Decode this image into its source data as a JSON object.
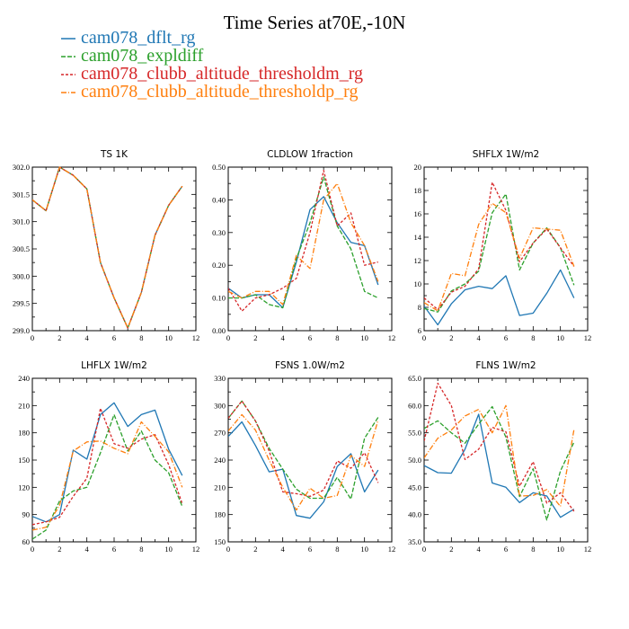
{
  "title": "Time Series at70E,-10N",
  "legend": [
    {
      "label": "cam078_dflt_rg",
      "color": "#1f77b4",
      "dash": ""
    },
    {
      "label": "cam078_expldiff",
      "color": "#2ca02c",
      "dash": "5,2"
    },
    {
      "label": "cam078_clubb_altitude_thresholdm_rg",
      "color": "#d62728",
      "dash": "3,2"
    },
    {
      "label": "cam078_clubb_altitude_thresholdp_rg",
      "color": "#ff7f0e",
      "dash": "6,2,1,2"
    }
  ],
  "chart_data": [
    {
      "type": "line",
      "title": "TS   1K",
      "x": [
        0,
        1,
        2,
        3,
        4,
        5,
        6,
        7,
        8,
        9,
        10,
        11
      ],
      "xlim": [
        0,
        12
      ],
      "xticks": [
        0,
        2,
        4,
        6,
        8,
        10,
        12
      ],
      "ylim": [
        299.0,
        302.0
      ],
      "yticks": [
        "299.0",
        "299.5",
        "300.0",
        "300.5",
        "301.0",
        "301.5",
        "302.0"
      ],
      "series": [
        {
          "name": "cam078_dflt_rg",
          "values": [
            301.4,
            301.2,
            302.0,
            301.85,
            301.6,
            300.25,
            299.6,
            299.05,
            299.7,
            300.75,
            301.3,
            301.65
          ]
        },
        {
          "name": "cam078_expldiff",
          "values": [
            301.4,
            301.2,
            302.0,
            301.85,
            301.6,
            300.25,
            299.6,
            299.05,
            299.7,
            300.75,
            301.3,
            301.65
          ]
        },
        {
          "name": "cam078_clubb_altitude_thresholdm_rg",
          "values": [
            301.4,
            301.2,
            302.0,
            301.85,
            301.6,
            300.25,
            299.6,
            299.05,
            299.7,
            300.75,
            301.3,
            301.65
          ]
        },
        {
          "name": "cam078_clubb_altitude_thresholdp_rg",
          "values": [
            301.4,
            301.2,
            302.0,
            301.85,
            301.6,
            300.25,
            299.6,
            299.05,
            299.7,
            300.75,
            301.3,
            301.65
          ]
        }
      ]
    },
    {
      "type": "line",
      "title": "CLDLOW   1fraction",
      "x": [
        0,
        1,
        2,
        3,
        4,
        5,
        6,
        7,
        8,
        9,
        10,
        11
      ],
      "xlim": [
        0,
        12
      ],
      "xticks": [
        0,
        2,
        4,
        6,
        8,
        10,
        12
      ],
      "ylim": [
        0.0,
        0.5
      ],
      "yticks": [
        "0.00",
        "0.10",
        "0.20",
        "0.30",
        "0.40",
        "0.50"
      ],
      "series": [
        {
          "name": "cam078_dflt_rg",
          "values": [
            0.13,
            0.1,
            0.11,
            0.11,
            0.07,
            0.21,
            0.37,
            0.41,
            0.33,
            0.27,
            0.26,
            0.14
          ]
        },
        {
          "name": "cam078_expldiff",
          "values": [
            0.1,
            0.1,
            0.11,
            0.08,
            0.07,
            0.22,
            0.33,
            0.47,
            0.32,
            0.25,
            0.12,
            0.1
          ]
        },
        {
          "name": "cam078_clubb_altitude_thresholdm_rg",
          "values": [
            0.13,
            0.06,
            0.1,
            0.11,
            0.13,
            0.16,
            0.3,
            0.49,
            0.32,
            0.36,
            0.2,
            0.21
          ]
        },
        {
          "name": "cam078_clubb_altitude_thresholdp_rg",
          "values": [
            0.12,
            0.1,
            0.12,
            0.12,
            0.08,
            0.23,
            0.19,
            0.4,
            0.45,
            0.33,
            0.26,
            0.15
          ]
        }
      ]
    },
    {
      "type": "line",
      "title": "SHFLX   1W/m2",
      "x": [
        0,
        1,
        2,
        3,
        4,
        5,
        6,
        7,
        8,
        9,
        10,
        11
      ],
      "xlim": [
        0,
        12
      ],
      "xticks": [
        0,
        2,
        4,
        6,
        8,
        10,
        12
      ],
      "ylim": [
        6,
        20
      ],
      "yticks": [
        "6",
        "8",
        "10",
        "12",
        "14",
        "16",
        "18",
        "20"
      ],
      "series": [
        {
          "name": "cam078_dflt_rg",
          "values": [
            8.1,
            6.5,
            8.3,
            9.5,
            9.8,
            9.6,
            10.7,
            7.3,
            7.5,
            9.2,
            11.2,
            8.8
          ]
        },
        {
          "name": "cam078_expldiff",
          "values": [
            7.9,
            7.6,
            9.4,
            10.0,
            11.1,
            16.1,
            17.7,
            11.2,
            13.5,
            14.8,
            13.1,
            9.9
          ]
        },
        {
          "name": "cam078_clubb_altitude_thresholdm_rg",
          "values": [
            8.8,
            7.8,
            9.3,
            9.8,
            11.3,
            18.7,
            16.3,
            11.9,
            13.5,
            14.7,
            13.1,
            11.5
          ]
        },
        {
          "name": "cam078_clubb_altitude_thresholdp_rg",
          "values": [
            8.4,
            7.7,
            10.9,
            10.7,
            15.1,
            16.9,
            16.1,
            12.2,
            14.8,
            14.7,
            14.6,
            11.5
          ]
        }
      ]
    },
    {
      "type": "line",
      "title": "LHFLX   1W/m2",
      "x": [
        0,
        1,
        2,
        3,
        4,
        5,
        6,
        7,
        8,
        9,
        10,
        11
      ],
      "xlim": [
        0,
        12
      ],
      "xticks": [
        0,
        2,
        4,
        6,
        8,
        10,
        12
      ],
      "ylim": [
        60,
        240
      ],
      "yticks": [
        "60",
        "90",
        "120",
        "150",
        "180",
        "210",
        "240"
      ],
      "series": [
        {
          "name": "cam078_dflt_rg",
          "values": [
            88,
            82,
            90,
            161,
            151,
            200,
            213,
            187,
            200,
            205,
            162,
            133
          ]
        },
        {
          "name": "cam078_expldiff",
          "values": [
            63,
            73,
            105,
            116,
            120,
            158,
            200,
            160,
            182,
            150,
            136,
            99
          ]
        },
        {
          "name": "cam078_clubb_altitude_thresholdm_rg",
          "values": [
            79,
            82,
            87,
            110,
            130,
            207,
            168,
            163,
            173,
            178,
            145,
            102
          ]
        },
        {
          "name": "cam078_clubb_altitude_thresholdp_rg",
          "values": [
            73,
            76,
            100,
            160,
            170,
            171,
            163,
            157,
            192,
            176,
            159,
            120
          ]
        }
      ]
    },
    {
      "type": "line",
      "title": "FSNS   1.0W/m2",
      "x": [
        0,
        1,
        2,
        3,
        4,
        5,
        6,
        7,
        8,
        9,
        10,
        11
      ],
      "xlim": [
        0,
        12
      ],
      "xticks": [
        0,
        2,
        4,
        6,
        8,
        10,
        12
      ],
      "ylim": [
        150,
        330
      ],
      "yticks": [
        "150",
        "180",
        "210",
        "240",
        "270",
        "300",
        "330"
      ],
      "series": [
        {
          "name": "cam078_dflt_rg",
          "values": [
            266,
            282,
            256,
            227,
            230,
            179,
            176,
            194,
            233,
            247,
            205,
            229
          ]
        },
        {
          "name": "cam078_expldiff",
          "values": [
            286,
            305,
            283,
            253,
            230,
            208,
            198,
            198,
            221,
            197,
            264,
            287
          ]
        },
        {
          "name": "cam078_clubb_altitude_thresholdm_rg",
          "values": [
            286,
            305,
            283,
            250,
            205,
            203,
            200,
            207,
            239,
            231,
            248,
            215
          ]
        },
        {
          "name": "cam078_clubb_altitude_thresholdp_rg",
          "values": [
            272,
            290,
            273,
            240,
            210,
            185,
            209,
            198,
            201,
            245,
            233,
            284
          ]
        }
      ]
    },
    {
      "type": "line",
      "title": "FLNS   1W/m2",
      "x": [
        0,
        1,
        2,
        3,
        4,
        5,
        6,
        7,
        8,
        9,
        10,
        11
      ],
      "xlim": [
        0,
        12
      ],
      "xticks": [
        0,
        2,
        4,
        6,
        8,
        10,
        12
      ],
      "ylim": [
        35.0,
        65.0
      ],
      "yticks": [
        "35.0",
        "40.0",
        "45.0",
        "50.0",
        "55.0",
        "60.0",
        "65.0"
      ],
      "series": [
        {
          "name": "cam078_dflt_rg",
          "values": [
            49.0,
            47.7,
            47.6,
            52.0,
            58.4,
            45.8,
            45.0,
            42.2,
            44.0,
            43.4,
            39.5,
            41.0
          ]
        },
        {
          "name": "cam078_expldiff",
          "values": [
            55.8,
            57.2,
            55.0,
            53.1,
            56.6,
            59.8,
            54.2,
            43.3,
            48.4,
            39.0,
            48.0,
            53.3
          ]
        },
        {
          "name": "cam078_clubb_altitude_thresholdm_rg",
          "values": [
            53.5,
            64.1,
            60.0,
            50.1,
            52.0,
            56.0,
            55.2,
            45.2,
            49.7,
            42.1,
            44.0,
            40.6
          ]
        },
        {
          "name": "cam078_clubb_altitude_thresholdp_rg",
          "values": [
            50.4,
            54.0,
            55.5,
            58.1,
            59.3,
            55.0,
            60.0,
            43.4,
            43.5,
            44.6,
            41.5,
            55.6
          ]
        }
      ]
    }
  ]
}
